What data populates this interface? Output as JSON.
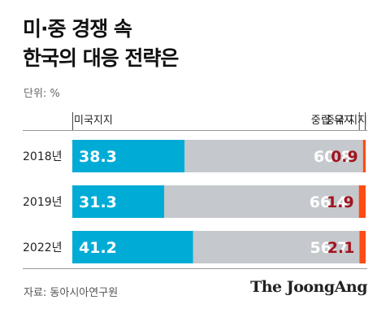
{
  "title_line1": "미·중 경쟁 속",
  "title_line2": "한국의 대응 전략은",
  "unit": "단위: %",
  "source": "자료: 동아시아연구원",
  "brand": "The JoongAng",
  "colors": {
    "us": "#00acd6",
    "maintain": "#c5c8cc",
    "china": "#ff4b14",
    "china_label": "#a1141e",
    "divider": "#999999"
  },
  "chart_data": {
    "type": "bar",
    "orientation": "horizontal",
    "stacked": true,
    "categories": [
      "2018년",
      "2019년",
      "2022년"
    ],
    "series": [
      {
        "name": "미국지지",
        "values": [
          38.3,
          31.3,
          41.2
        ]
      },
      {
        "name": "중립 유지",
        "values": [
          60.8,
          66.4,
          56.7
        ]
      },
      {
        "name": "중국 지지",
        "values": [
          0.9,
          1.9,
          2.1
        ]
      }
    ],
    "xlim": [
      0,
      100
    ],
    "grid": false,
    "legend": "top"
  }
}
